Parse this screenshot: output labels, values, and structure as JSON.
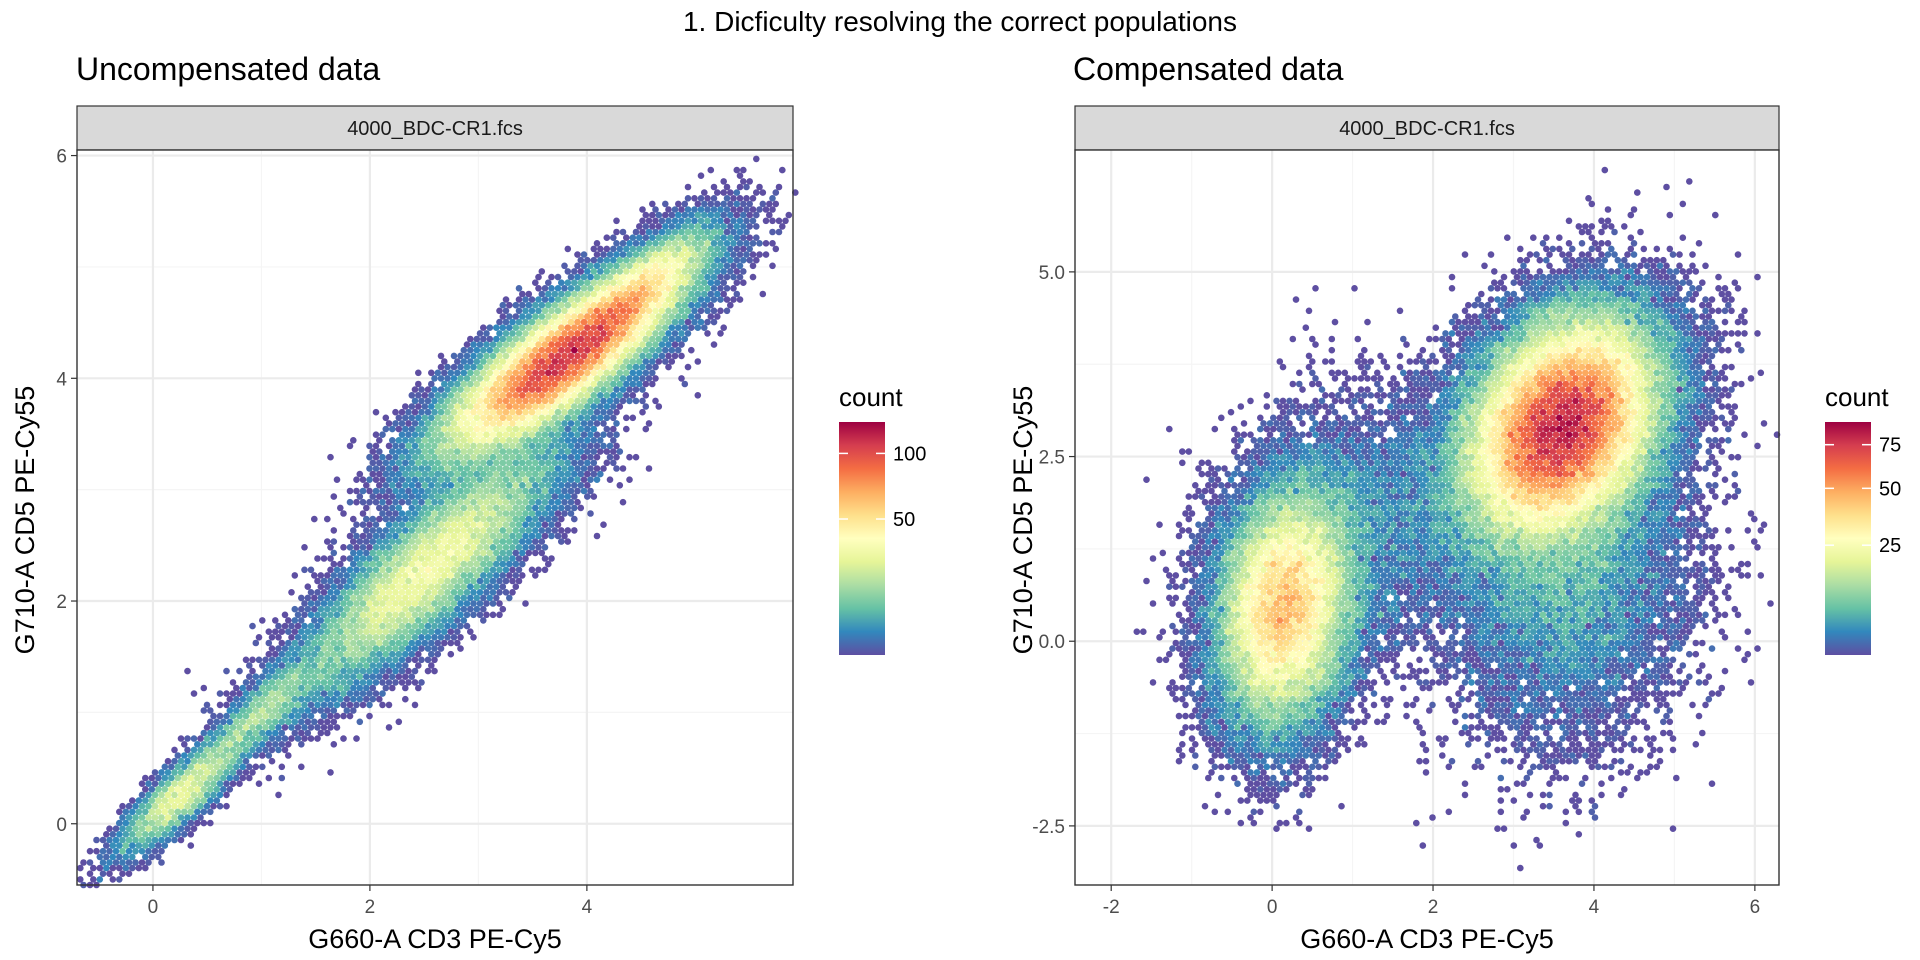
{
  "title": "1. Dicficulty resolving the correct populations",
  "colors": {
    "panel_border": "#333333",
    "strip_fill": "#d9d9d9",
    "grid_major": "#ebebeb",
    "grid_minor": "#f5f5f5",
    "palette": [
      "#5e4fa2",
      "#3288bd",
      "#66c2a5",
      "#abdda4",
      "#e6f598",
      "#ffffbf",
      "#fee08b",
      "#fdae61",
      "#f46d43",
      "#d53e4f",
      "#9e0142"
    ]
  },
  "chart_data": [
    {
      "type": "heatmap",
      "subtype": "hexbin",
      "title": "Uncompensated data",
      "facet_label": "4000_BDC-CR1.fcs",
      "xlabel": "G660-A CD3 PE-Cy5",
      "ylabel": "G710-A CD5 PE-Cy55",
      "xlim": [
        -0.7,
        5.9
      ],
      "ylim": [
        -0.55,
        6.05
      ],
      "xticks": [
        0,
        2,
        4
      ],
      "yticks": [
        0,
        2,
        4,
        6
      ],
      "xtick_labels": [
        "0",
        "2",
        "4"
      ],
      "ytick_labels": [
        "0",
        "2",
        "4",
        "6"
      ],
      "grid": true,
      "legend": {
        "title": "count",
        "position": "right",
        "ticks": [
          50,
          100
        ],
        "tick_labels": [
          "50",
          "100"
        ],
        "range": [
          1,
          130
        ]
      },
      "populations": [
        {
          "cx": 3.75,
          "cy": 4.15,
          "sx": 0.55,
          "sy": 0.42,
          "rho": 0.82,
          "n": 68000
        },
        {
          "cx": 2.55,
          "cy": 2.3,
          "sx": 0.6,
          "sy": 0.55,
          "rho": 0.85,
          "n": 26000
        },
        {
          "cx": 0.25,
          "cy": 0.25,
          "sx": 0.28,
          "sy": 0.26,
          "rho": 0.85,
          "n": 5200
        },
        {
          "cx": 4.5,
          "cy": 4.8,
          "sx": 0.35,
          "sy": 0.3,
          "rho": 0.8,
          "n": 9000
        },
        {
          "cx": 1.0,
          "cy": 1.0,
          "sx": 0.3,
          "sy": 0.28,
          "rho": 0.85,
          "n": 3000
        }
      ]
    },
    {
      "type": "heatmap",
      "subtype": "hexbin",
      "title": "Compensated data",
      "facet_label": "4000_BDC-CR1.fcs",
      "xlabel": "G660-A CD3 PE-Cy5",
      "ylabel": "G710-A CD5 PE-Cy55",
      "xlim": [
        -2.45,
        6.3
      ],
      "ylim": [
        -3.3,
        6.65
      ],
      "xticks": [
        -2,
        0,
        2,
        4,
        6
      ],
      "yticks": [
        -2.5,
        0.0,
        2.5,
        5.0
      ],
      "xtick_labels": [
        "-2",
        "0",
        "2",
        "4",
        "6"
      ],
      "ytick_labels": [
        "-2.5",
        "0.0",
        "2.5",
        "5.0"
      ],
      "grid": true,
      "legend": {
        "title": "count",
        "position": "right",
        "ticks": [
          25,
          50,
          75
        ],
        "tick_labels": [
          "25",
          "50",
          "75"
        ],
        "range": [
          1,
          90
        ]
      },
      "populations": [
        {
          "cx": 3.6,
          "cy": 2.9,
          "sx": 0.6,
          "sy": 0.75,
          "rho": 0.3,
          "n": 82000
        },
        {
          "cx": 0.15,
          "cy": 0.45,
          "sx": 0.42,
          "sy": 0.8,
          "rho": 0.15,
          "n": 33000
        },
        {
          "cx": 3.7,
          "cy": 0.9,
          "sx": 0.75,
          "sy": 1.1,
          "rho": 0.1,
          "n": 9000
        },
        {
          "cx": 1.2,
          "cy": 1.6,
          "sx": 0.8,
          "sy": 0.9,
          "rho": 0.1,
          "n": 4500
        }
      ]
    }
  ]
}
